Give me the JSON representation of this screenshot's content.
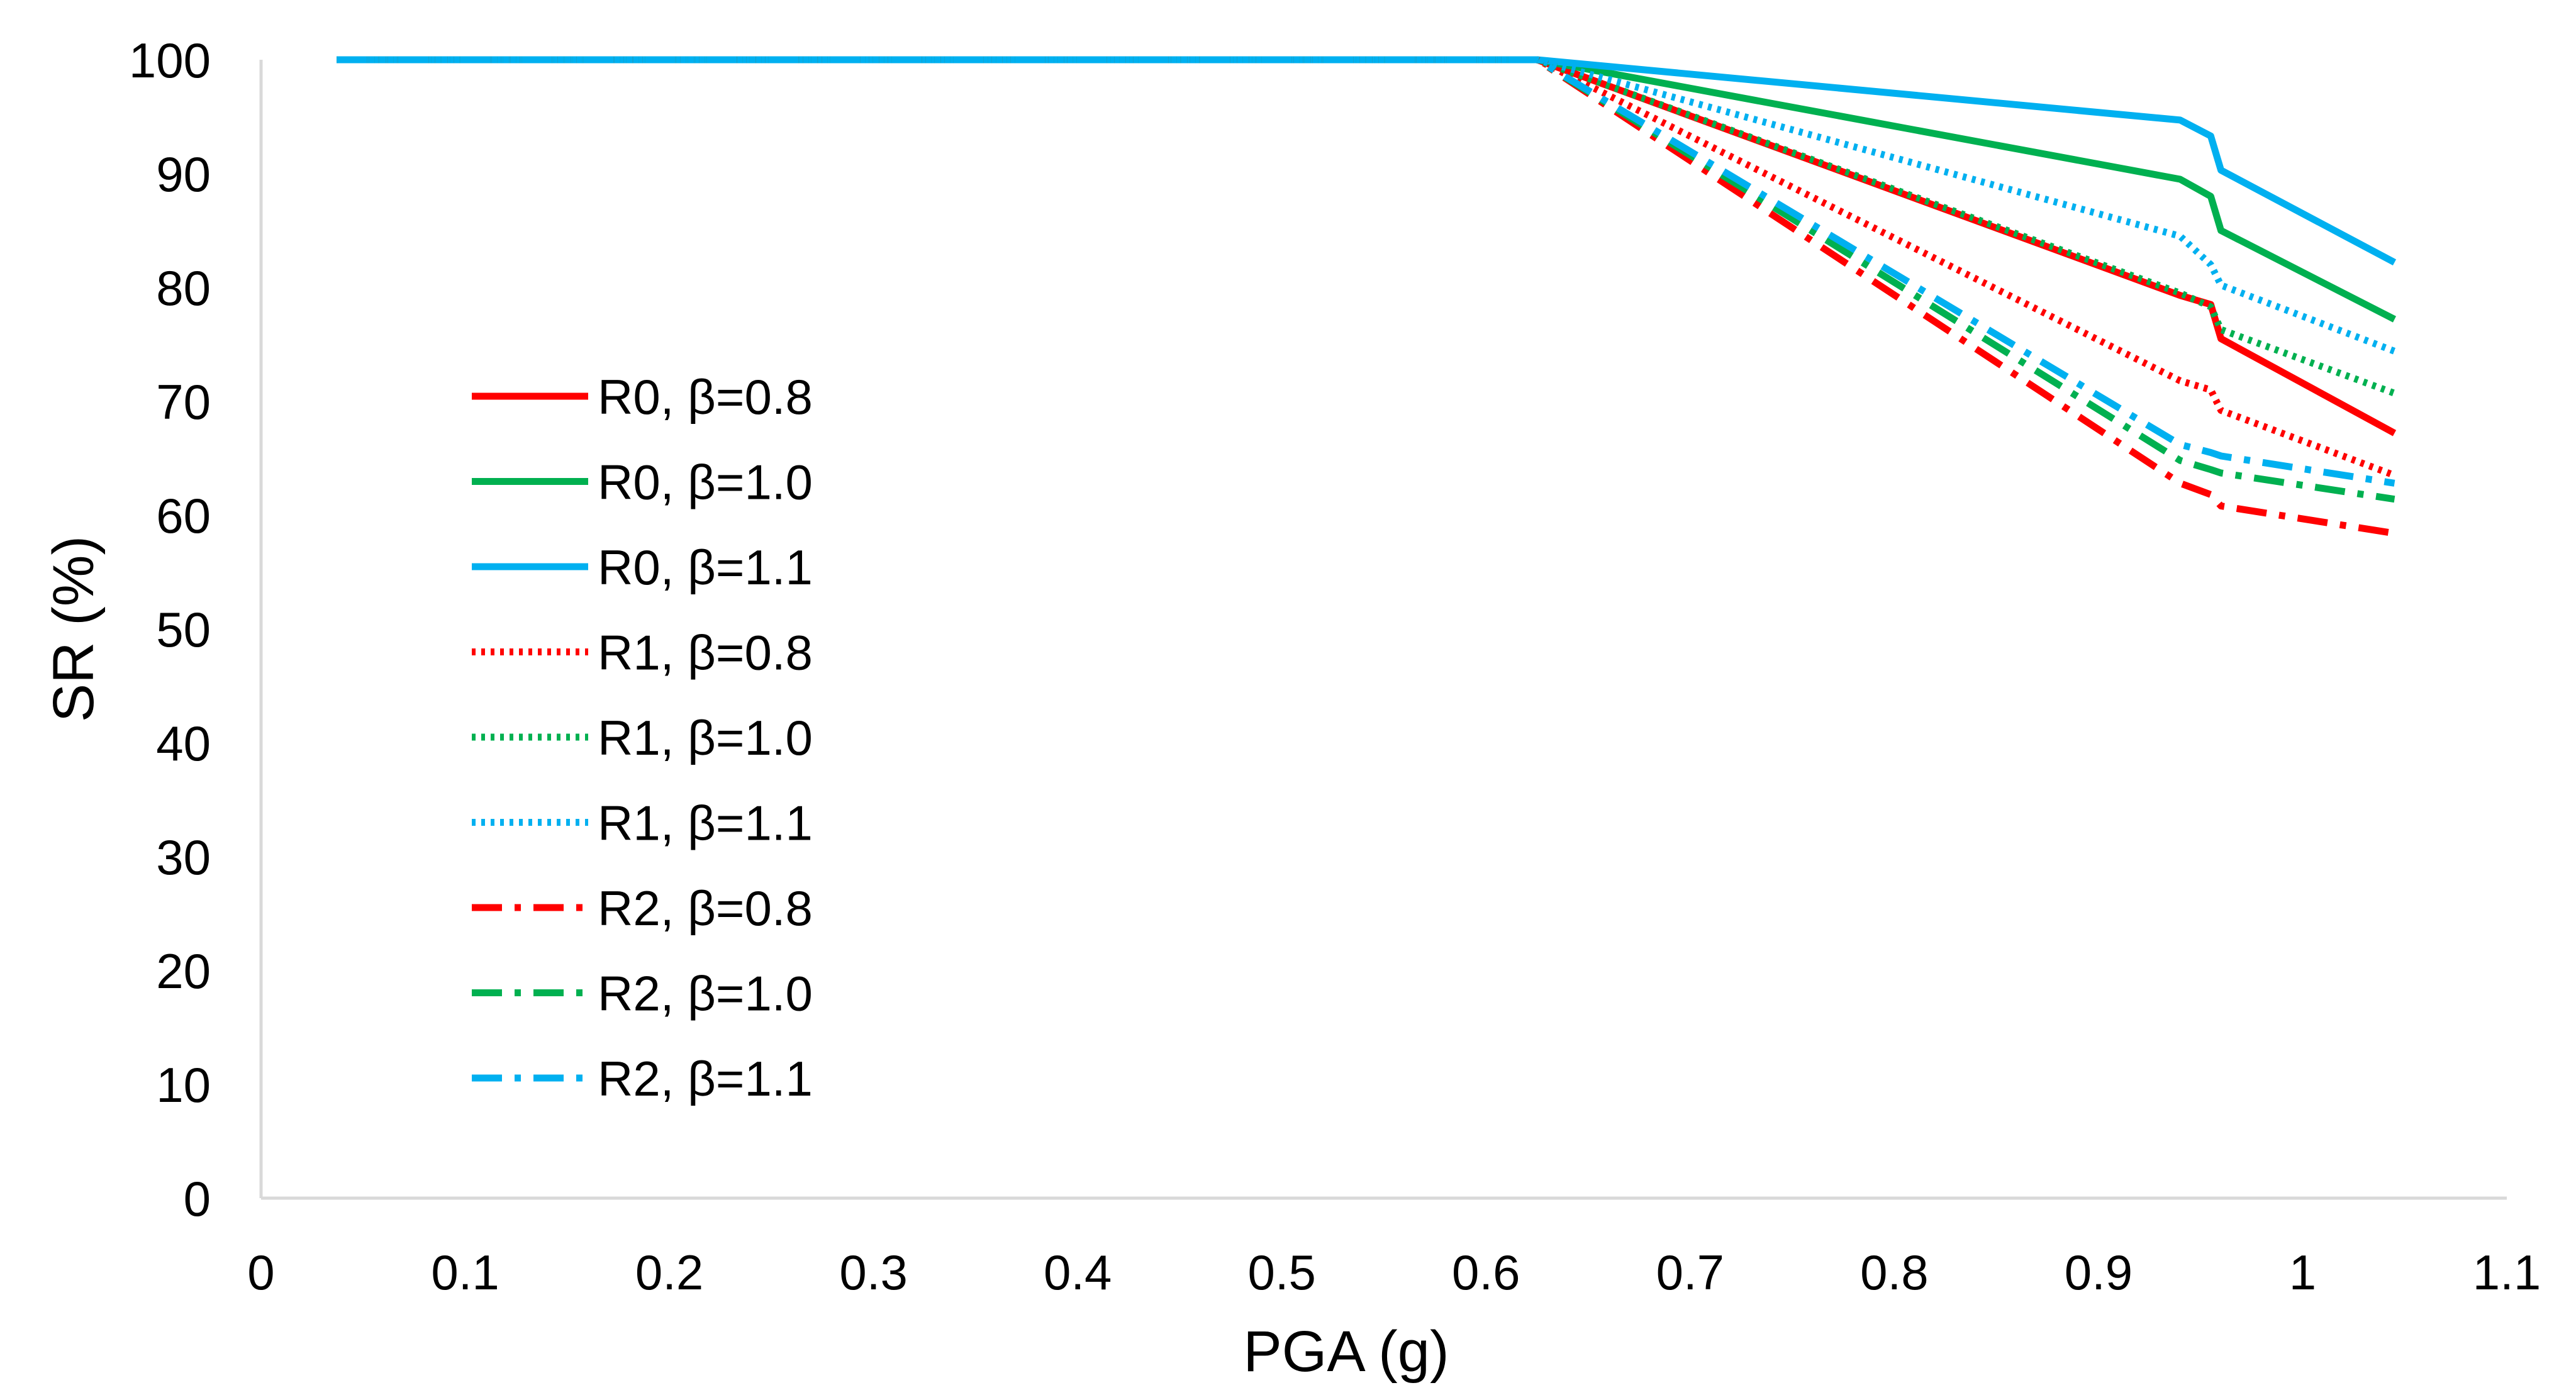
{
  "chart_data": {
    "type": "line",
    "title": "",
    "xlabel": "PGA (g)",
    "ylabel": "SR (%)",
    "xlim": [
      0,
      1.1
    ],
    "ylim": [
      0,
      100
    ],
    "xticks": [
      0,
      0.1,
      0.2,
      0.3,
      0.4,
      0.5,
      0.6,
      0.7,
      0.8,
      0.9,
      1,
      1.1
    ],
    "xtick_labels": [
      "0",
      "0.1",
      "0.2",
      "0.3",
      "0.4",
      "0.5",
      "0.6",
      "0.7",
      "0.8",
      "0.9",
      "1",
      "1.1"
    ],
    "yticks": [
      0,
      10,
      20,
      30,
      40,
      50,
      60,
      70,
      80,
      90,
      100
    ],
    "ytick_labels": [
      "0",
      "10",
      "20",
      "30",
      "40",
      "50",
      "60",
      "70",
      "80",
      "90",
      "100"
    ],
    "grid": false,
    "legend_position": "left-center",
    "series": [
      {
        "name": "R0, β=0.8",
        "color": "#FF0000",
        "style": "solid",
        "x": [
          0.037,
          0.625,
          0.94,
          0.955,
          0.96,
          1.045
        ],
        "y": [
          100,
          100,
          79.3,
          78.5,
          75.5,
          67.2
        ]
      },
      {
        "name": "R0, β=1.0",
        "color": "#00B050",
        "style": "solid",
        "x": [
          0.037,
          0.625,
          0.94,
          0.955,
          0.96,
          1.045
        ],
        "y": [
          100,
          100,
          89.5,
          88,
          85,
          77.2
        ]
      },
      {
        "name": "R0, β=1.1",
        "color": "#00B0F0",
        "style": "solid",
        "x": [
          0.037,
          0.625,
          0.94,
          0.955,
          0.96,
          1.045
        ],
        "y": [
          100,
          100,
          94.7,
          93.3,
          90.3,
          82.2
        ]
      },
      {
        "name": "R1, β=0.8",
        "color": "#FF0000",
        "style": "dotted",
        "x": [
          0.037,
          0.625,
          0.94,
          0.955,
          0.96,
          1.045
        ],
        "y": [
          100,
          100,
          71.8,
          71,
          69.2,
          63.5
        ]
      },
      {
        "name": "R1, β=1.0",
        "color": "#00B050",
        "style": "dotted",
        "x": [
          0.037,
          0.625,
          0.94,
          0.955,
          0.96,
          1.045
        ],
        "y": [
          100,
          100,
          79.5,
          78.3,
          76.3,
          70.7
        ]
      },
      {
        "name": "R1, β=1.1",
        "color": "#00B0F0",
        "style": "dotted",
        "x": [
          0.037,
          0.625,
          0.94,
          0.955,
          0.96,
          1.045
        ],
        "y": [
          100,
          100,
          84.5,
          82,
          80.2,
          74.4
        ]
      },
      {
        "name": "R2, β=0.8",
        "color": "#FF0000",
        "style": "dashdot",
        "x": [
          0.037,
          0.625,
          0.94,
          0.955,
          0.96,
          1.045
        ],
        "y": [
          100,
          100,
          62.8,
          61.8,
          60.8,
          58.4
        ]
      },
      {
        "name": "R2, β=1.0",
        "color": "#00B050",
        "style": "dashdot",
        "x": [
          0.037,
          0.625,
          0.94,
          0.955,
          0.96,
          1.045
        ],
        "y": [
          100,
          100,
          64.8,
          64,
          63.7,
          61.4
        ]
      },
      {
        "name": "R2, β=1.1",
        "color": "#00B0F0",
        "style": "dashdot",
        "x": [
          0.037,
          0.625,
          0.94,
          0.955,
          0.96,
          1.045
        ],
        "y": [
          100,
          100,
          66.2,
          65.5,
          65.2,
          62.8
        ]
      }
    ]
  }
}
